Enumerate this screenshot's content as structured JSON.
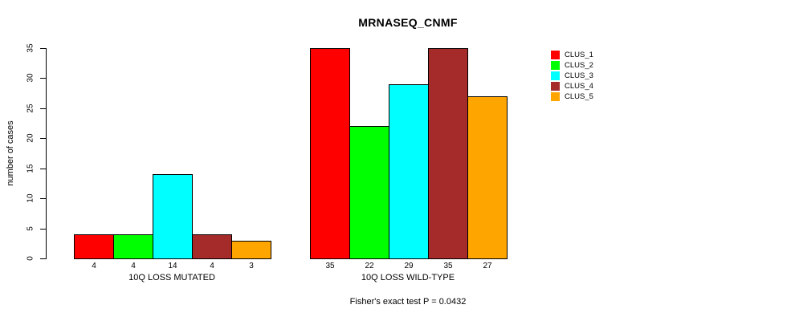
{
  "chart_data": {
    "type": "bar",
    "title": "MRNASEQ_CNMF",
    "xlabel": "",
    "ylabel": "number of cases",
    "ylim": [
      0,
      35
    ],
    "yticks": [
      0,
      5,
      10,
      15,
      20,
      25,
      30,
      35
    ],
    "grid": false,
    "legend_position": "right",
    "categories": [
      "10Q LOSS MUTATED",
      "10Q LOSS WILD-TYPE"
    ],
    "series": [
      {
        "name": "CLUS_1",
        "color": "#FF0000",
        "values": [
          4,
          35
        ]
      },
      {
        "name": "CLUS_2",
        "color": "#00FF00",
        "values": [
          4,
          22
        ]
      },
      {
        "name": "CLUS_3",
        "color": "#00FFFF",
        "values": [
          14,
          29
        ]
      },
      {
        "name": "CLUS_4",
        "color": "#A52A2A",
        "values": [
          4,
          35
        ]
      },
      {
        "name": "CLUS_5",
        "color": "#FFA500",
        "values": [
          3,
          27
        ]
      }
    ],
    "bar_value_labels": {
      "10Q LOSS MUTATED": [
        4,
        4,
        14,
        4,
        3
      ],
      "10Q LOSS WILD-TYPE": [
        35,
        22,
        29,
        35,
        27
      ]
    },
    "annotation": "Fisher's exact test P = 0.0432",
    "axis_color": "#000000",
    "bar_border_color": "#000000",
    "background_color": "#ffffff"
  }
}
